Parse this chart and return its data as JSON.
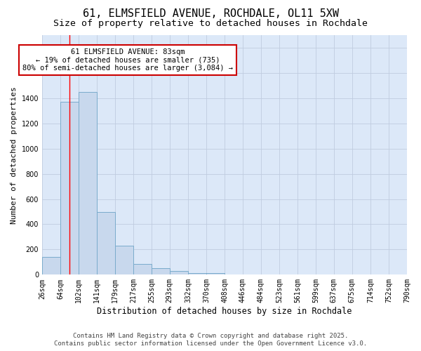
{
  "title": "61, ELMSFIELD AVENUE, ROCHDALE, OL11 5XW",
  "subtitle": "Size of property relative to detached houses in Rochdale",
  "xlabel": "Distribution of detached houses by size in Rochdale",
  "ylabel": "Number of detached properties",
  "bar_values": [
    140,
    1370,
    1450,
    500,
    230,
    85,
    50,
    30,
    15,
    15,
    0,
    0,
    0,
    0,
    0,
    0,
    0,
    0,
    0
  ],
  "bin_edges": [
    26,
    64,
    102,
    141,
    179,
    217,
    255,
    293,
    332,
    370,
    408,
    446,
    484,
    523,
    561,
    599,
    637,
    675,
    714,
    752,
    790
  ],
  "tick_labels": [
    "26sqm",
    "64sqm",
    "102sqm",
    "141sqm",
    "179sqm",
    "217sqm",
    "255sqm",
    "293sqm",
    "332sqm",
    "370sqm",
    "408sqm",
    "446sqm",
    "484sqm",
    "523sqm",
    "561sqm",
    "599sqm",
    "637sqm",
    "675sqm",
    "714sqm",
    "752sqm",
    "790sqm"
  ],
  "bar_color": "#c8d8ed",
  "bar_edge_color": "#7aabcc",
  "grid_color": "#c0cce0",
  "axes_background_color": "#dce8f8",
  "figure_background_color": "#ffffff",
  "red_line_x": 83,
  "annotation_line1": "61 ELMSFIELD AVENUE: 83sqm",
  "annotation_line2": "← 19% of detached houses are smaller (735)",
  "annotation_line3": "80% of semi-detached houses are larger (3,084) →",
  "annotation_box_color": "#ffffff",
  "annotation_border_color": "#cc0000",
  "ylim": [
    0,
    1900
  ],
  "yticks": [
    0,
    200,
    400,
    600,
    800,
    1000,
    1200,
    1400,
    1600,
    1800
  ],
  "footer_text": "Contains HM Land Registry data © Crown copyright and database right 2025.\nContains public sector information licensed under the Open Government Licence v3.0.",
  "title_fontsize": 11,
  "subtitle_fontsize": 9.5,
  "xlabel_fontsize": 8.5,
  "ylabel_fontsize": 8,
  "tick_fontsize": 7,
  "annotation_fontsize": 7.5,
  "footer_fontsize": 6.5
}
